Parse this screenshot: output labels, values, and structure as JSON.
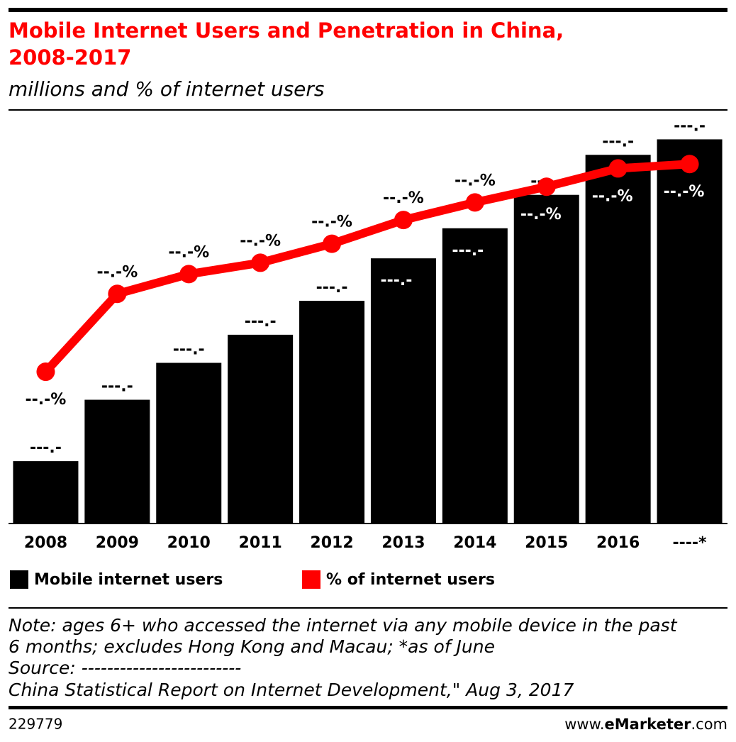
{
  "header": {
    "title": [
      "Mobile Internet Users and Penetration in China,",
      "2008-2017"
    ],
    "subtitle": "millions and % of internet users"
  },
  "chart_data": {
    "type": "bar-line",
    "categories": [
      "2008",
      "2009",
      "2010",
      "2011",
      "2012",
      "2013",
      "2014",
      "2015",
      "2016",
      "----*"
    ],
    "series": [
      {
        "name": "Mobile internet users",
        "color": "#000000",
        "values": [
          117.6,
          233.4,
          303.0,
          356.0,
          420.0,
          500.1,
          556.8,
          619.8,
          695.3,
          724.5
        ],
        "value_labels": [
          "---.-",
          "---.-",
          "---.-",
          "---.-",
          "---.-",
          "---.-",
          "---.-",
          "---.-",
          "---.-",
          "---.-"
        ]
      },
      {
        "name": "% of internet users",
        "color": "#ff0000",
        "axis": "y2",
        "values": [
          39.5,
          60.8,
          66.2,
          69.3,
          74.5,
          81.0,
          85.8,
          90.1,
          95.1,
          96.3
        ],
        "value_labels": [
          "--.-%",
          "--.-%",
          "--.-%",
          "--.-%",
          "--.-%",
          "--.-%",
          "--.-%",
          "--.-%",
          "--.-%",
          "--.-%"
        ]
      }
    ],
    "ylim": [
      0,
      800
    ],
    "y2lim": [
      -2,
      114
    ]
  },
  "footer": {
    "note": [
      "Note: ages 6+ who accessed the internet via any mobile device in the past",
      "6 months; excludes Hong Kong and Macau; *as of June",
      "Source: -------------------------",
      "China Statistical Report on Internet Development,\" Aug 3, 2017"
    ],
    "id": "229779",
    "site": [
      "www.",
      "eMarketer",
      ".com"
    ]
  }
}
